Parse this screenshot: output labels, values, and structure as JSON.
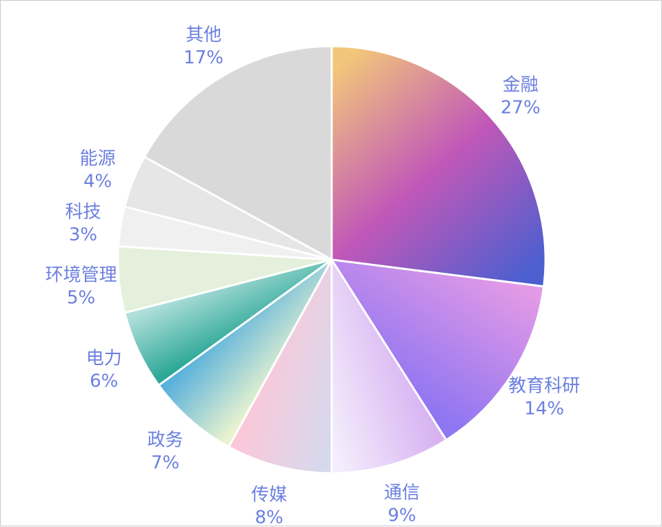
{
  "chart_data": {
    "type": "pie",
    "title": "",
    "start_angle_deg": 0,
    "direction": "clockwise",
    "slices": [
      {
        "label": "金融",
        "value": 27,
        "value_label": "27%",
        "colors": [
          "#f2c67a",
          "#c158b8",
          "#4c5fcf"
        ]
      },
      {
        "label": "教育科研",
        "value": 14,
        "value_label": "14%",
        "colors": [
          "#e39ae6",
          "#8e75f2"
        ]
      },
      {
        "label": "通信",
        "value": 9,
        "value_label": "9%",
        "colors": [
          "#d8b3f2",
          "#f4eefc"
        ]
      },
      {
        "label": "传媒",
        "value": 8,
        "value_label": "8%",
        "colors": [
          "#d6d9ee",
          "#fac8d8"
        ]
      },
      {
        "label": "政务",
        "value": 7,
        "value_label": "7%",
        "colors": [
          "#e9f3cf",
          "#59b1dc"
        ]
      },
      {
        "label": "电力",
        "value": 6,
        "value_label": "6%",
        "colors": [
          "#2ba797",
          "#b2e0db"
        ]
      },
      {
        "label": "环境管理",
        "value": 5,
        "value_label": "5%",
        "colors": [
          "#e4f0db",
          "#e4f0db"
        ]
      },
      {
        "label": "科技",
        "value": 3,
        "value_label": "3%",
        "colors": [
          "#f0f0f0",
          "#f0f0f0"
        ]
      },
      {
        "label": "能源",
        "value": 4,
        "value_label": "4%",
        "colors": [
          "#e6e6e6",
          "#e6e6e6"
        ]
      },
      {
        "label": "其他",
        "value": 17,
        "value_label": "17%",
        "colors": [
          "#d9d9d9",
          "#d9d9d9"
        ]
      }
    ],
    "label_color": "#6b7fe0",
    "separator_color": "#ffffff",
    "legend": "none"
  }
}
